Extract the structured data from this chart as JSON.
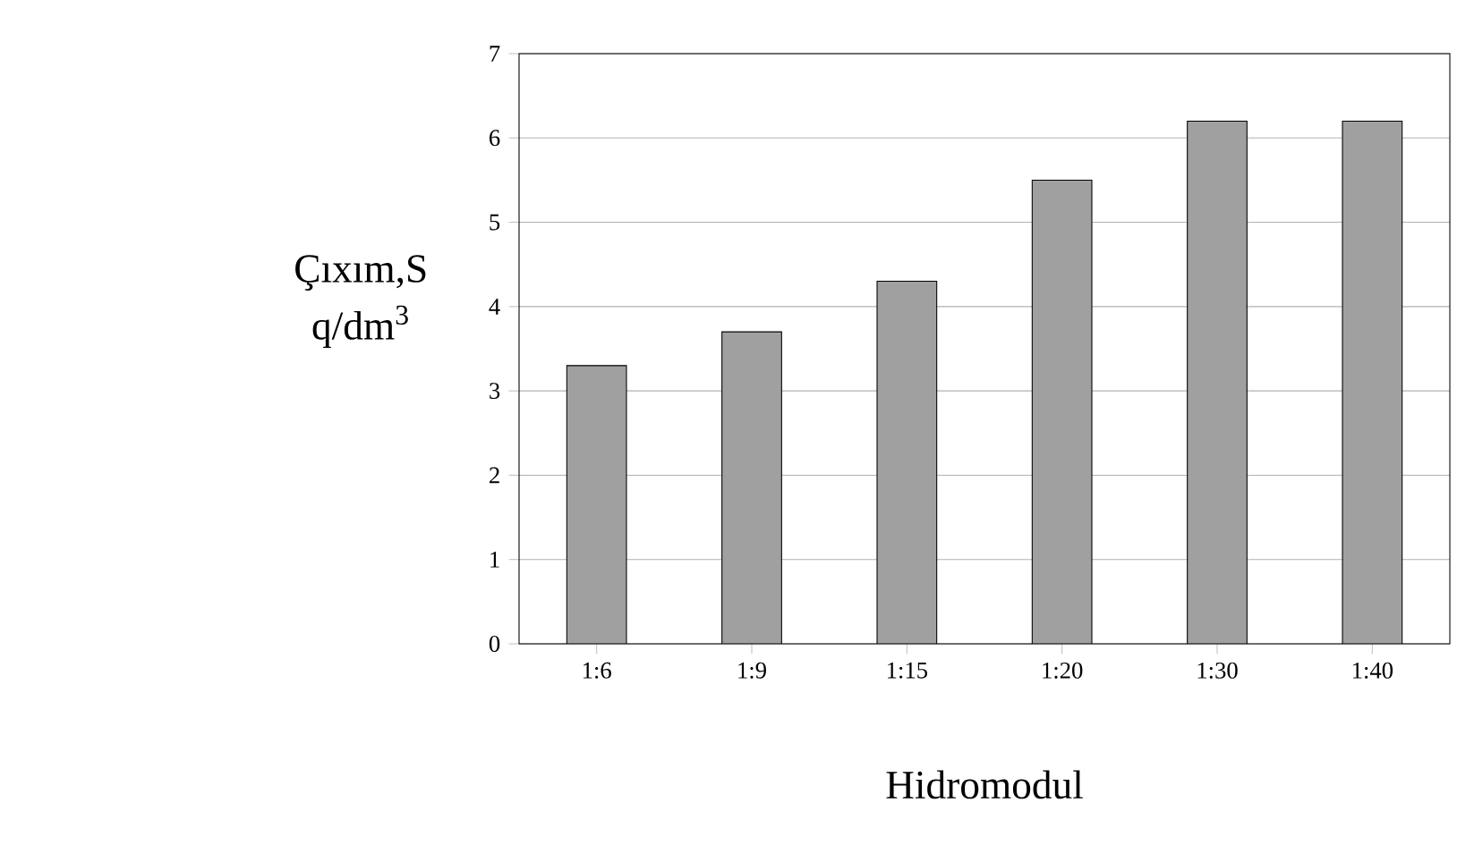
{
  "chart_data": {
    "type": "bar",
    "xlabel": "Hidromodul",
    "ylabel": "Çıxım,S q/dm$^{3}$",
    "categories": [
      "1:6",
      "1:9",
      "1:15",
      "1:20",
      "1:30",
      "1:40"
    ],
    "values": [
      3.3,
      3.7,
      4.3,
      5.5,
      6.2,
      6.2
    ],
    "color": "#a0a0a0",
    "ylim": [
      0,
      7
    ],
    "yticks": [
      0,
      1,
      2,
      3,
      4,
      5,
      6,
      7
    ],
    "grid": "y"
  }
}
